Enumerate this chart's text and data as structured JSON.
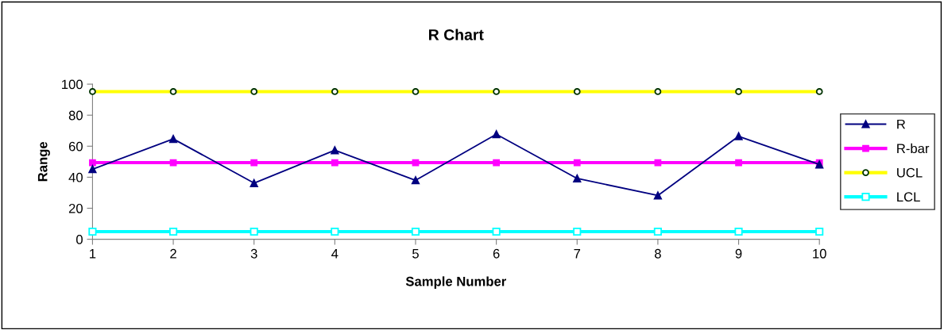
{
  "chart_data": {
    "type": "line",
    "title": "R Chart",
    "xlabel": "Sample Number",
    "ylabel": "Range",
    "x": [
      1,
      2,
      3,
      4,
      5,
      6,
      7,
      8,
      9,
      10
    ],
    "xlim": [
      1,
      10
    ],
    "xticks": [
      1,
      2,
      3,
      4,
      5,
      6,
      7,
      8,
      9,
      10
    ],
    "ylim": [
      0,
      100
    ],
    "yticks": [
      0,
      20,
      40,
      60,
      80,
      100
    ],
    "grid": false,
    "legend": "right",
    "series": [
      {
        "name": "R",
        "color": "#000080",
        "marker": "triangle",
        "values": [
          45.2,
          64.7,
          36.2,
          57.4,
          38.0,
          67.7,
          39.2,
          28.2,
          66.4,
          48.2
        ]
      },
      {
        "name": "R-bar",
        "color": "#ff00ff",
        "marker": "square",
        "values": [
          49.4,
          49.4,
          49.4,
          49.4,
          49.4,
          49.4,
          49.4,
          49.4,
          49.4,
          49.4
        ]
      },
      {
        "name": "UCL",
        "color": "#ffff00",
        "marker": "circle",
        "values": [
          95.2,
          95.2,
          95.2,
          95.2,
          95.2,
          95.2,
          95.2,
          95.2,
          95.2,
          95.2
        ]
      },
      {
        "name": "LCL",
        "color": "#00ffff",
        "marker": "square",
        "values": [
          4.9,
          4.9,
          4.9,
          4.9,
          4.9,
          4.9,
          4.9,
          4.9,
          4.9,
          4.9
        ]
      }
    ]
  }
}
